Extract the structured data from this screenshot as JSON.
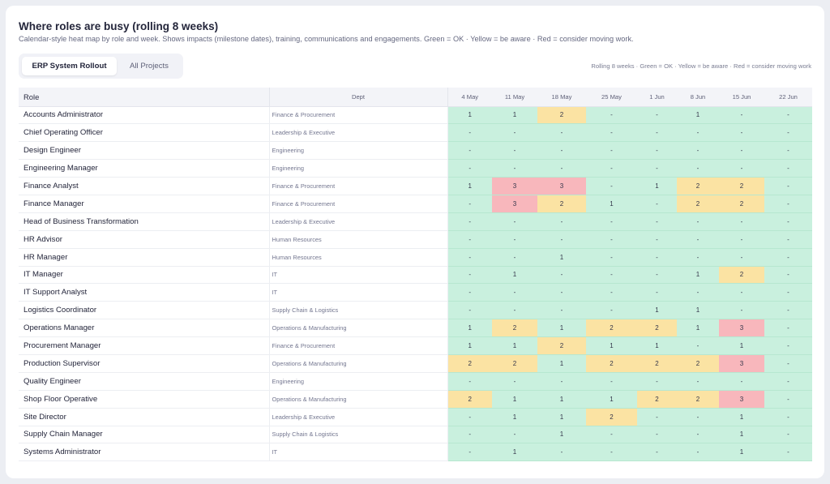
{
  "header": {
    "title": "Where roles are busy (rolling 8 weeks)",
    "subtitle": "Calendar-style heat map by role and week. Shows impacts (milestone dates), training, communications and engagements. Green = OK · Yellow = be aware · Red = consider moving work."
  },
  "tabs": [
    {
      "label": "ERP System Rollout",
      "active": true
    },
    {
      "label": "All Projects",
      "active": false
    }
  ],
  "legend": "Rolling 8 weeks · Green = OK · Yellow = be aware · Red = consider moving work",
  "colors": {
    "ok": "#c9f0de",
    "aware": "#fbe3a3",
    "move": "#f8b7bc"
  },
  "table": {
    "role_header": "Role",
    "dept_header": "Dept",
    "weeks": [
      "4 May",
      "11 May",
      "18 May",
      "25 May",
      "1 Jun",
      "8 Jun",
      "15 Jun",
      "22 Jun"
    ],
    "rows": [
      {
        "role": "Accounts Administrator",
        "dept": "Finance & Procurement",
        "cells": [
          {
            "v": "1",
            "s": "g"
          },
          {
            "v": "1",
            "s": "g"
          },
          {
            "v": "2",
            "s": "y"
          },
          {
            "v": "-",
            "s": "g"
          },
          {
            "v": "-",
            "s": "g"
          },
          {
            "v": "1",
            "s": "g"
          },
          {
            "v": "-",
            "s": "g"
          },
          {
            "v": "-",
            "s": "g"
          }
        ]
      },
      {
        "role": "Chief Operating Officer",
        "dept": "Leadership & Executive",
        "cells": [
          {
            "v": "-",
            "s": "g"
          },
          {
            "v": "-",
            "s": "g"
          },
          {
            "v": "-",
            "s": "g"
          },
          {
            "v": "-",
            "s": "g"
          },
          {
            "v": "-",
            "s": "g"
          },
          {
            "v": "-",
            "s": "g"
          },
          {
            "v": "-",
            "s": "g"
          },
          {
            "v": "-",
            "s": "g"
          }
        ]
      },
      {
        "role": "Design Engineer",
        "dept": "Engineering",
        "cells": [
          {
            "v": "-",
            "s": "g"
          },
          {
            "v": "-",
            "s": "g"
          },
          {
            "v": "-",
            "s": "g"
          },
          {
            "v": "-",
            "s": "g"
          },
          {
            "v": "-",
            "s": "g"
          },
          {
            "v": "-",
            "s": "g"
          },
          {
            "v": "-",
            "s": "g"
          },
          {
            "v": "-",
            "s": "g"
          }
        ]
      },
      {
        "role": "Engineering Manager",
        "dept": "Engineering",
        "cells": [
          {
            "v": "-",
            "s": "g"
          },
          {
            "v": "-",
            "s": "g"
          },
          {
            "v": "-",
            "s": "g"
          },
          {
            "v": "-",
            "s": "g"
          },
          {
            "v": "-",
            "s": "g"
          },
          {
            "v": "-",
            "s": "g"
          },
          {
            "v": "-",
            "s": "g"
          },
          {
            "v": "-",
            "s": "g"
          }
        ]
      },
      {
        "role": "Finance Analyst",
        "dept": "Finance & Procurement",
        "cells": [
          {
            "v": "1",
            "s": "g"
          },
          {
            "v": "3",
            "s": "r"
          },
          {
            "v": "3",
            "s": "r"
          },
          {
            "v": "-",
            "s": "g"
          },
          {
            "v": "1",
            "s": "g"
          },
          {
            "v": "2",
            "s": "y"
          },
          {
            "v": "2",
            "s": "y"
          },
          {
            "v": "-",
            "s": "g"
          }
        ]
      },
      {
        "role": "Finance Manager",
        "dept": "Finance & Procurement",
        "cells": [
          {
            "v": "-",
            "s": "g"
          },
          {
            "v": "3",
            "s": "r"
          },
          {
            "v": "2",
            "s": "y"
          },
          {
            "v": "1",
            "s": "g"
          },
          {
            "v": "-",
            "s": "g"
          },
          {
            "v": "2",
            "s": "y"
          },
          {
            "v": "2",
            "s": "y"
          },
          {
            "v": "-",
            "s": "g"
          }
        ]
      },
      {
        "role": "Head of Business Transformation",
        "dept": "Leadership & Executive",
        "cells": [
          {
            "v": "-",
            "s": "g"
          },
          {
            "v": "-",
            "s": "g"
          },
          {
            "v": "-",
            "s": "g"
          },
          {
            "v": "-",
            "s": "g"
          },
          {
            "v": "-",
            "s": "g"
          },
          {
            "v": "-",
            "s": "g"
          },
          {
            "v": "-",
            "s": "g"
          },
          {
            "v": "-",
            "s": "g"
          }
        ]
      },
      {
        "role": "HR Advisor",
        "dept": "Human Resources",
        "cells": [
          {
            "v": "-",
            "s": "g"
          },
          {
            "v": "-",
            "s": "g"
          },
          {
            "v": "-",
            "s": "g"
          },
          {
            "v": "-",
            "s": "g"
          },
          {
            "v": "-",
            "s": "g"
          },
          {
            "v": "-",
            "s": "g"
          },
          {
            "v": "-",
            "s": "g"
          },
          {
            "v": "-",
            "s": "g"
          }
        ]
      },
      {
        "role": "HR Manager",
        "dept": "Human Resources",
        "cells": [
          {
            "v": "-",
            "s": "g"
          },
          {
            "v": "-",
            "s": "g"
          },
          {
            "v": "1",
            "s": "g"
          },
          {
            "v": "-",
            "s": "g"
          },
          {
            "v": "-",
            "s": "g"
          },
          {
            "v": "-",
            "s": "g"
          },
          {
            "v": "-",
            "s": "g"
          },
          {
            "v": "-",
            "s": "g"
          }
        ]
      },
      {
        "role": "IT Manager",
        "dept": "IT",
        "cells": [
          {
            "v": "-",
            "s": "g"
          },
          {
            "v": "1",
            "s": "g"
          },
          {
            "v": "-",
            "s": "g"
          },
          {
            "v": "-",
            "s": "g"
          },
          {
            "v": "-",
            "s": "g"
          },
          {
            "v": "1",
            "s": "g"
          },
          {
            "v": "2",
            "s": "y"
          },
          {
            "v": "-",
            "s": "g"
          }
        ]
      },
      {
        "role": "IT Support Analyst",
        "dept": "IT",
        "cells": [
          {
            "v": "-",
            "s": "g"
          },
          {
            "v": "-",
            "s": "g"
          },
          {
            "v": "-",
            "s": "g"
          },
          {
            "v": "-",
            "s": "g"
          },
          {
            "v": "-",
            "s": "g"
          },
          {
            "v": "-",
            "s": "g"
          },
          {
            "v": "-",
            "s": "g"
          },
          {
            "v": "-",
            "s": "g"
          }
        ]
      },
      {
        "role": "Logistics Coordinator",
        "dept": "Supply Chain & Logistics",
        "cells": [
          {
            "v": "-",
            "s": "g"
          },
          {
            "v": "-",
            "s": "g"
          },
          {
            "v": "-",
            "s": "g"
          },
          {
            "v": "-",
            "s": "g"
          },
          {
            "v": "1",
            "s": "g"
          },
          {
            "v": "1",
            "s": "g"
          },
          {
            "v": "-",
            "s": "g"
          },
          {
            "v": "-",
            "s": "g"
          }
        ]
      },
      {
        "role": "Operations Manager",
        "dept": "Operations & Manufacturing",
        "cells": [
          {
            "v": "1",
            "s": "g"
          },
          {
            "v": "2",
            "s": "y"
          },
          {
            "v": "1",
            "s": "g"
          },
          {
            "v": "2",
            "s": "y"
          },
          {
            "v": "2",
            "s": "y"
          },
          {
            "v": "1",
            "s": "g"
          },
          {
            "v": "3",
            "s": "r"
          },
          {
            "v": "-",
            "s": "g"
          }
        ]
      },
      {
        "role": "Procurement Manager",
        "dept": "Finance & Procurement",
        "cells": [
          {
            "v": "1",
            "s": "g"
          },
          {
            "v": "1",
            "s": "g"
          },
          {
            "v": "2",
            "s": "y"
          },
          {
            "v": "1",
            "s": "g"
          },
          {
            "v": "1",
            "s": "g"
          },
          {
            "v": "-",
            "s": "g"
          },
          {
            "v": "1",
            "s": "g"
          },
          {
            "v": "-",
            "s": "g"
          }
        ]
      },
      {
        "role": "Production Supervisor",
        "dept": "Operations & Manufacturing",
        "cells": [
          {
            "v": "2",
            "s": "y"
          },
          {
            "v": "2",
            "s": "y"
          },
          {
            "v": "1",
            "s": "g"
          },
          {
            "v": "2",
            "s": "y"
          },
          {
            "v": "2",
            "s": "y"
          },
          {
            "v": "2",
            "s": "y"
          },
          {
            "v": "3",
            "s": "r"
          },
          {
            "v": "-",
            "s": "g"
          }
        ]
      },
      {
        "role": "Quality Engineer",
        "dept": "Engineering",
        "cells": [
          {
            "v": "-",
            "s": "g"
          },
          {
            "v": "-",
            "s": "g"
          },
          {
            "v": "-",
            "s": "g"
          },
          {
            "v": "-",
            "s": "g"
          },
          {
            "v": "-",
            "s": "g"
          },
          {
            "v": "-",
            "s": "g"
          },
          {
            "v": "-",
            "s": "g"
          },
          {
            "v": "-",
            "s": "g"
          }
        ]
      },
      {
        "role": "Shop Floor Operative",
        "dept": "Operations & Manufacturing",
        "cells": [
          {
            "v": "2",
            "s": "y"
          },
          {
            "v": "1",
            "s": "g"
          },
          {
            "v": "1",
            "s": "g"
          },
          {
            "v": "1",
            "s": "g"
          },
          {
            "v": "2",
            "s": "y"
          },
          {
            "v": "2",
            "s": "y"
          },
          {
            "v": "3",
            "s": "r"
          },
          {
            "v": "-",
            "s": "g"
          }
        ]
      },
      {
        "role": "Site Director",
        "dept": "Leadership & Executive",
        "cells": [
          {
            "v": "-",
            "s": "g"
          },
          {
            "v": "1",
            "s": "g"
          },
          {
            "v": "1",
            "s": "g"
          },
          {
            "v": "2",
            "s": "y"
          },
          {
            "v": "-",
            "s": "g"
          },
          {
            "v": "-",
            "s": "g"
          },
          {
            "v": "1",
            "s": "g"
          },
          {
            "v": "-",
            "s": "g"
          }
        ]
      },
      {
        "role": "Supply Chain Manager",
        "dept": "Supply Chain & Logistics",
        "cells": [
          {
            "v": "-",
            "s": "g"
          },
          {
            "v": "-",
            "s": "g"
          },
          {
            "v": "1",
            "s": "g"
          },
          {
            "v": "-",
            "s": "g"
          },
          {
            "v": "-",
            "s": "g"
          },
          {
            "v": "-",
            "s": "g"
          },
          {
            "v": "1",
            "s": "g"
          },
          {
            "v": "-",
            "s": "g"
          }
        ]
      },
      {
        "role": "Systems Administrator",
        "dept": "IT",
        "cells": [
          {
            "v": "-",
            "s": "g"
          },
          {
            "v": "1",
            "s": "g"
          },
          {
            "v": "-",
            "s": "g"
          },
          {
            "v": "-",
            "s": "g"
          },
          {
            "v": "-",
            "s": "g"
          },
          {
            "v": "-",
            "s": "g"
          },
          {
            "v": "1",
            "s": "g"
          },
          {
            "v": "-",
            "s": "g"
          }
        ]
      }
    ]
  }
}
